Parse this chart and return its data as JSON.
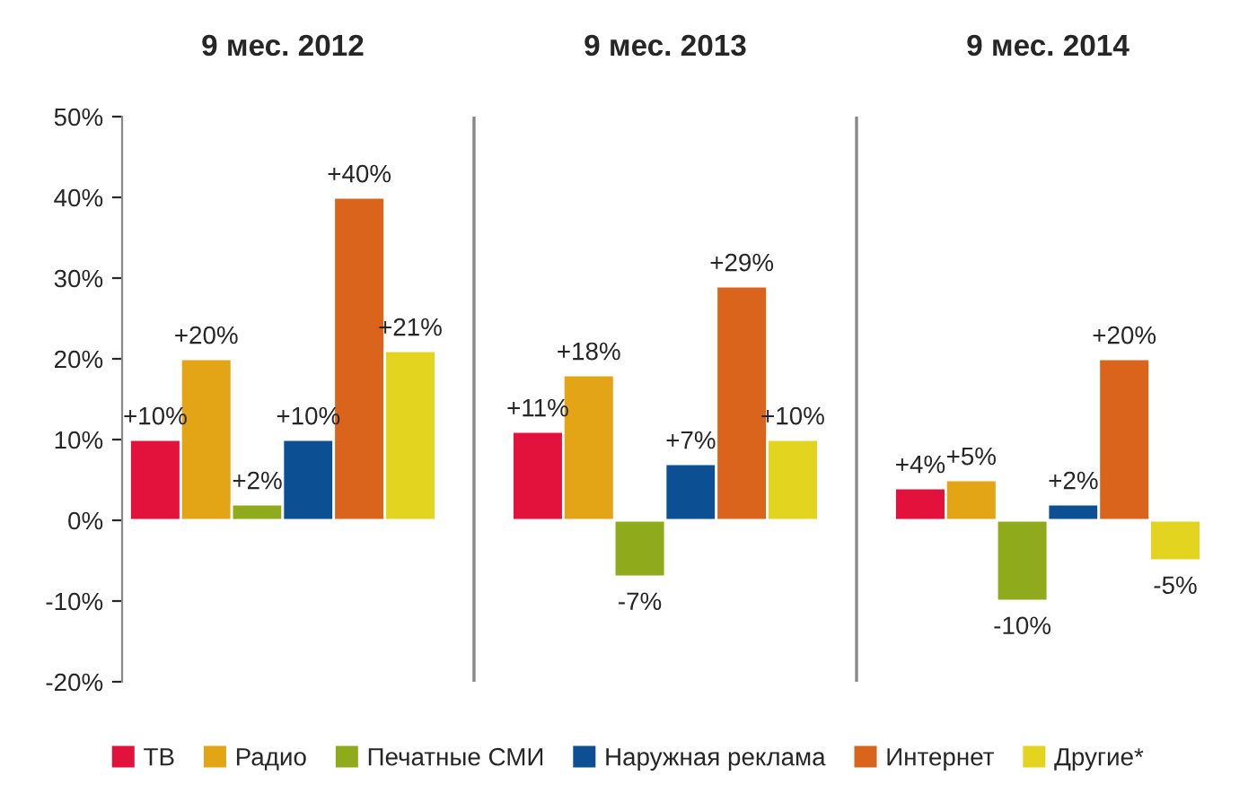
{
  "chart_data": {
    "type": "bar",
    "categories": [
      "9 мес. 2012",
      "9 мес. 2013",
      "9 мес. 2014"
    ],
    "ylim": [
      -20,
      50
    ],
    "yticks": [
      {
        "value": -20,
        "label": "-20%"
      },
      {
        "value": -10,
        "label": "-10%"
      },
      {
        "value": 0,
        "label": "0%"
      },
      {
        "value": 10,
        "label": "10%"
      },
      {
        "value": 20,
        "label": "20%"
      },
      {
        "value": 30,
        "label": "30%"
      },
      {
        "value": 40,
        "label": "40%"
      },
      {
        "value": 50,
        "label": "50%"
      }
    ],
    "grid": false,
    "legend": "bottom",
    "series": [
      {
        "name": "ТВ",
        "color": "#e3123d",
        "values": [
          10,
          11,
          4
        ],
        "value_labels": [
          "+10%",
          "+11%",
          "+4%"
        ]
      },
      {
        "name": "Радио",
        "color": "#e3a415",
        "values": [
          20,
          18,
          5
        ],
        "value_labels": [
          "+20%",
          "+18%",
          "+5%"
        ]
      },
      {
        "name": "Печатные СМИ",
        "color": "#8fab1c",
        "values": [
          2,
          -7,
          -10
        ],
        "value_labels": [
          "+2%",
          "-7%",
          "-10%"
        ]
      },
      {
        "name": "Наружная реклама",
        "color": "#0d4f93",
        "values": [
          10,
          7,
          2
        ],
        "value_labels": [
          "+10%",
          "+7%",
          "+2%"
        ]
      },
      {
        "name": "Интернет",
        "color": "#db641c",
        "values": [
          40,
          29,
          20
        ],
        "value_labels": [
          "+40%",
          "+29%",
          "+20%"
        ]
      },
      {
        "name": "Другие*",
        "color": "#e2d41f",
        "values": [
          21,
          10,
          -5
        ],
        "value_labels": [
          "+21%",
          "+10%",
          "-5%"
        ]
      }
    ]
  }
}
